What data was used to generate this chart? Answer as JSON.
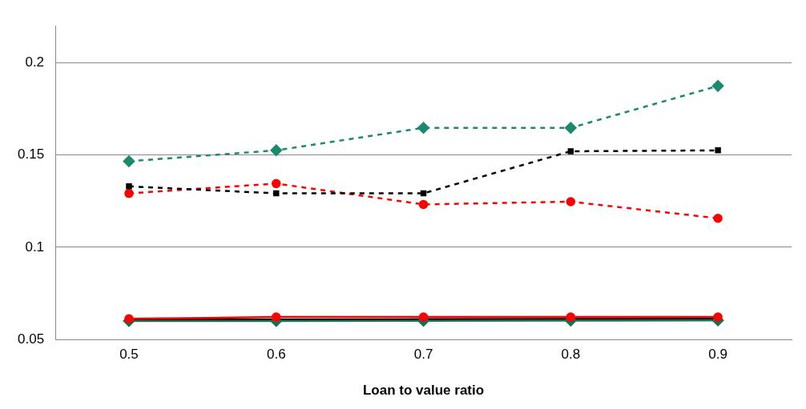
{
  "chart_data": {
    "type": "line",
    "xlabel": "Loan to value ratio",
    "categories": [
      "0.5",
      "0.6",
      "0.7",
      "0.8",
      "0.9"
    ],
    "ylim": [
      0.05,
      0.22
    ],
    "yticks": [
      0.05,
      0.1,
      0.15,
      0.2
    ],
    "grid": "y",
    "legend": false,
    "series": [
      {
        "color": "#1a8a6e",
        "marker": "diamond",
        "line_style": "dashed",
        "values": [
          0.1466,
          0.1525,
          0.1647,
          0.1647,
          0.1874
        ]
      },
      {
        "color": "#000000",
        "marker": "square",
        "line_style": "dashed",
        "values": [
          0.133,
          0.1292,
          0.1292,
          0.152,
          0.1525
        ]
      },
      {
        "color": "#ff0000",
        "marker": "circle",
        "line_style": "dashed",
        "values": [
          0.1292,
          0.1345,
          0.1232,
          0.1247,
          0.1157
        ]
      },
      {
        "color": "#ff0000",
        "marker": "circle",
        "line_style": "solid",
        "values": [
          0.0612,
          0.0622,
          0.0622,
          0.0622,
          0.0622
        ]
      },
      {
        "color": "#1a6e55",
        "marker": "diamond",
        "line_style": "solid",
        "values": [
          0.0601,
          0.0601,
          0.0602,
          0.0603,
          0.0604
        ]
      },
      {
        "color": "#000000",
        "marker": "square",
        "line_style": "solid",
        "values": [
          0.0608,
          0.0608,
          0.061,
          0.0611,
          0.0612
        ]
      }
    ]
  }
}
